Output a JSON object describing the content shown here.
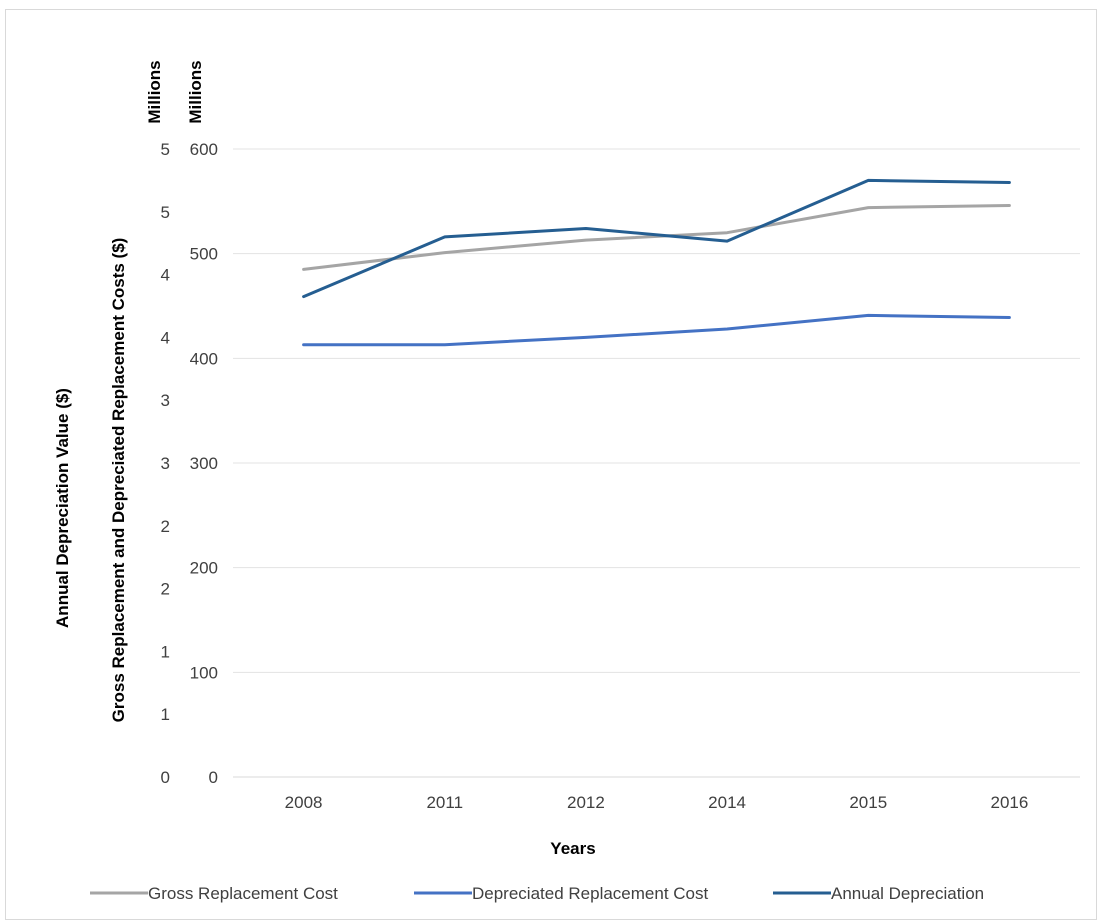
{
  "chart_data": {
    "type": "line",
    "categories": [
      "2008",
      "2011",
      "2012",
      "2014",
      "2015",
      "2016"
    ],
    "xlabel": "Years",
    "y_left": {
      "label": "Annual Depreciation  Value ($)",
      "unit_label": "Millions",
      "tick_labels": [
        "0",
        "1",
        "1",
        "2",
        "2",
        "3",
        "3",
        "4",
        "4",
        "5",
        "5"
      ]
    },
    "y_right": {
      "label": "Gross Replacement and Depreciated Replacement Costs ($)",
      "unit_label": "Millions",
      "tick_labels": [
        "0",
        "100",
        "200",
        "300",
        "400",
        "500",
        "600"
      ],
      "ylim": [
        0,
        600
      ]
    },
    "series": [
      {
        "name": "Gross Replacement Cost",
        "axis": "right",
        "color": "#a5a5a5",
        "values": [
          485,
          501,
          513,
          520,
          544,
          546
        ]
      },
      {
        "name": "Depreciated Replacement Cost",
        "axis": "right",
        "color": "#4472c4",
        "values": [
          413,
          413,
          420,
          428,
          441,
          439
        ]
      },
      {
        "name": "Annual Depreciation",
        "axis": "right",
        "color": "#255e91",
        "values": [
          459,
          516,
          524,
          512,
          570,
          568
        ]
      }
    ],
    "grid": true,
    "legend_position": "bottom"
  }
}
